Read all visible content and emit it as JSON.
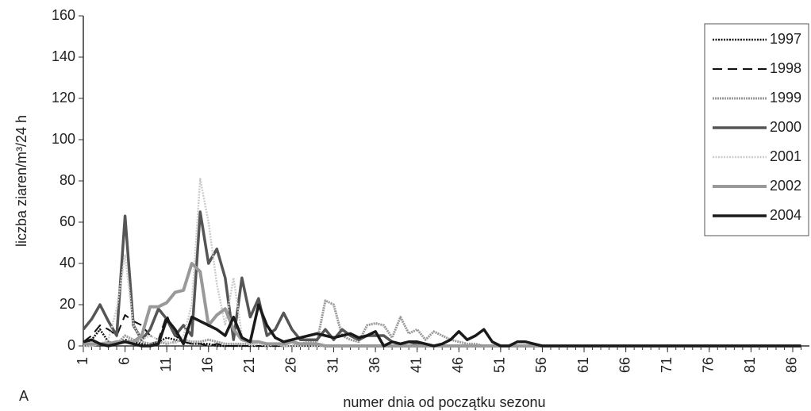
{
  "chart_data": {
    "type": "line",
    "y_label": "liczba ziaren/m³/24 h",
    "x_label": "numer dnia od początku sezonu",
    "panel_label": "A",
    "x": [
      1,
      2,
      3,
      4,
      5,
      6,
      7,
      8,
      9,
      10,
      11,
      12,
      13,
      14,
      15,
      16,
      17,
      18,
      19,
      20,
      21,
      22,
      23,
      24,
      25,
      26,
      27,
      28,
      29,
      30,
      31,
      32,
      33,
      34,
      35,
      36,
      37,
      38,
      39,
      40,
      41,
      42,
      43,
      44,
      45,
      46,
      47,
      48,
      49,
      50,
      51,
      52,
      53,
      54,
      55,
      56,
      57,
      58,
      59,
      60,
      61,
      62,
      63,
      64,
      65,
      66,
      67,
      68,
      69,
      70,
      71,
      72,
      73,
      74,
      75,
      76,
      77,
      78,
      79,
      80,
      81,
      82,
      83,
      84,
      85,
      86,
      87
    ],
    "xlim": [
      1,
      88
    ],
    "xticks": [
      1,
      6,
      11,
      16,
      21,
      26,
      31,
      36,
      41,
      46,
      51,
      56,
      61,
      66,
      71,
      76,
      81,
      86
    ],
    "ylim": [
      0,
      160
    ],
    "yticks": [
      0,
      20,
      40,
      60,
      80,
      100,
      120,
      140,
      160
    ],
    "grid": false,
    "legend": "top-right",
    "series": [
      {
        "name": "1997",
        "color": "#111111",
        "dash": "2,1.5",
        "width": 2.5,
        "values": [
          1,
          3,
          8,
          2,
          1,
          3,
          2,
          1,
          1,
          2,
          4,
          3,
          2,
          1,
          1,
          1,
          0,
          0,
          0,
          0,
          0,
          0,
          0,
          0,
          0,
          0,
          0,
          0,
          0,
          0,
          0,
          0,
          0,
          0,
          0,
          0,
          0,
          0,
          0,
          0,
          0,
          0,
          0,
          0,
          0,
          0,
          0,
          0,
          0,
          0,
          0,
          0,
          0,
          0,
          0,
          0,
          0,
          0,
          0,
          0,
          0,
          0,
          0,
          0,
          0,
          0,
          0,
          0,
          0,
          0,
          0,
          0,
          0,
          0,
          0,
          0,
          0,
          0,
          0,
          0,
          0,
          0,
          0,
          0,
          0,
          0,
          0
        ]
      },
      {
        "name": "1998",
        "color": "#111111",
        "dash": "12,7",
        "width": 2,
        "values": [
          2,
          5,
          10,
          8,
          5,
          15,
          12,
          10,
          5,
          3,
          15,
          5,
          2,
          1,
          1,
          0,
          1,
          0,
          0,
          0,
          0,
          0,
          0,
          0,
          0,
          0,
          0,
          0,
          0,
          0,
          0,
          0,
          0,
          0,
          0,
          0,
          0,
          0,
          0,
          0,
          0,
          0,
          0,
          0,
          0,
          0,
          0,
          0,
          0,
          0,
          0,
          0,
          0,
          0,
          0,
          0,
          0,
          0,
          0,
          0,
          0,
          0,
          0,
          0,
          0,
          0,
          0,
          0,
          0,
          0,
          0,
          0,
          0,
          0,
          0,
          0,
          0,
          0,
          0,
          0,
          0,
          0,
          0,
          0,
          0,
          0,
          0
        ]
      },
      {
        "name": "1999",
        "color": "#9a9a9a",
        "dash": "2,1",
        "width": 3,
        "values": [
          0,
          0,
          1,
          2,
          1,
          5,
          3,
          2,
          1,
          2,
          1,
          2,
          3,
          2,
          2,
          3,
          2,
          1,
          1,
          1,
          1,
          2,
          1,
          1,
          0,
          0,
          1,
          2,
          2,
          22,
          20,
          5,
          3,
          2,
          10,
          11,
          10,
          4,
          14,
          6,
          8,
          3,
          7,
          5,
          3,
          2,
          1,
          1,
          0,
          0,
          0,
          0,
          0,
          0,
          0,
          0,
          0,
          0,
          0,
          0,
          0,
          0,
          0,
          0,
          0,
          0,
          0,
          0,
          0,
          0,
          0,
          0,
          0,
          0,
          0,
          0,
          0,
          0,
          0,
          0,
          0,
          0,
          0,
          0,
          0,
          0,
          0
        ]
      },
      {
        "name": "2000",
        "color": "#555555",
        "dash": "none",
        "width": 3.5,
        "values": [
          8,
          13,
          20,
          12,
          5,
          63,
          10,
          3,
          8,
          18,
          13,
          5,
          10,
          5,
          65,
          40,
          47,
          33,
          3,
          33,
          14,
          23,
          5,
          8,
          16,
          8,
          3,
          3,
          3,
          8,
          3,
          8,
          5,
          3,
          5,
          5,
          5,
          2,
          1,
          2,
          1,
          0,
          0,
          0,
          0,
          0,
          0,
          0,
          0,
          0,
          0,
          0,
          0,
          0,
          0,
          0,
          0,
          0,
          0,
          0,
          0,
          0,
          0,
          0,
          0,
          0,
          0,
          0,
          0,
          0,
          0,
          0,
          0,
          0,
          0,
          0,
          0,
          0,
          0,
          0,
          0,
          0,
          0,
          0,
          0,
          0,
          0
        ]
      },
      {
        "name": "2001",
        "color": "#cccccc",
        "dash": "2,1.5",
        "width": 2.5,
        "values": [
          0,
          0,
          1,
          3,
          18,
          44,
          10,
          3,
          5,
          3,
          2,
          1,
          5,
          20,
          81,
          60,
          30,
          10,
          33,
          5,
          0,
          1,
          0,
          1,
          0,
          0,
          0,
          0,
          0,
          0,
          0,
          0,
          0,
          0,
          0,
          0,
          0,
          0,
          0,
          0,
          0,
          0,
          0,
          0,
          0,
          0,
          0,
          0,
          0,
          0,
          0,
          0,
          0,
          0,
          0,
          0,
          0,
          0,
          0,
          0,
          0,
          0,
          0,
          0,
          0,
          0,
          0,
          0,
          0,
          0,
          0,
          0,
          0,
          0,
          0,
          0,
          0,
          0,
          0,
          0,
          0,
          0,
          0,
          0,
          0,
          0,
          0
        ]
      },
      {
        "name": "2002",
        "color": "#999999",
        "dash": "none",
        "width": 4,
        "values": [
          1,
          1,
          1,
          1,
          2,
          2,
          2,
          5,
          19,
          19,
          21,
          26,
          27,
          40,
          36,
          10,
          15,
          18,
          8,
          3,
          2,
          2,
          1,
          1,
          1,
          2,
          1,
          1,
          1,
          0,
          0,
          0,
          0,
          0,
          0,
          0,
          0,
          0,
          0,
          0,
          0,
          0,
          0,
          0,
          0,
          0,
          0,
          0,
          0,
          0,
          0,
          0,
          0,
          0,
          0,
          0,
          0,
          0,
          0,
          0,
          0,
          0,
          0,
          0,
          0,
          0,
          0,
          0,
          0,
          0,
          0,
          0,
          0,
          0,
          0,
          0,
          0,
          0,
          0,
          0,
          0,
          0,
          0,
          0,
          0,
          0,
          0
        ]
      },
      {
        "name": "2004",
        "color": "#1a1a1a",
        "dash": "none",
        "width": 3.5,
        "values": [
          2,
          3,
          1,
          0,
          1,
          2,
          1,
          0,
          0,
          1,
          13,
          8,
          1,
          14,
          12,
          10,
          8,
          5,
          14,
          4,
          2,
          20,
          10,
          4,
          2,
          3,
          4,
          5,
          6,
          5,
          4,
          5,
          6,
          4,
          5,
          7,
          0,
          2,
          1,
          2,
          2,
          1,
          0,
          1,
          3,
          7,
          3,
          5,
          8,
          2,
          0,
          0,
          2,
          2,
          1,
          0,
          0,
          0,
          0,
          0,
          0,
          0,
          0,
          0,
          0,
          0,
          0,
          0,
          0,
          0,
          0,
          0,
          0,
          0,
          0,
          0,
          0,
          0,
          0,
          0,
          0,
          0,
          0,
          0,
          0,
          0,
          0
        ]
      }
    ]
  }
}
